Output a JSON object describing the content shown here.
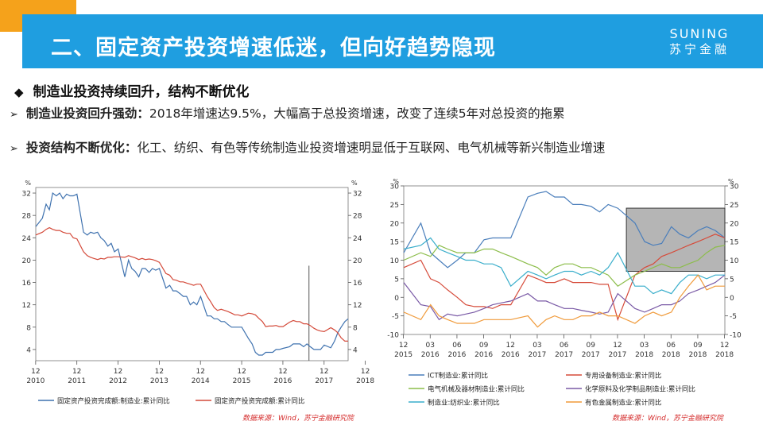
{
  "header": {
    "title": "二、固定资产投资增速低迷，但向好趋势隐现",
    "logo_en": "SUNING",
    "logo_cn": "苏宁金融"
  },
  "heading": "制造业投资持续回升，结构不断优化",
  "bullets": [
    {
      "bold": "制造业投资回升强劲：",
      "text": "2018年增速达9.5%，大幅高于总投资增速，改变了连续5年对总投资的拖累"
    },
    {
      "bold": "投资结构不断优化：",
      "text": "化工、纺织、有色等传统制造业投资增速明显低于互联网、电气机械等新兴制造业增速"
    }
  ],
  "colors": {
    "accent": "#f5a21b",
    "header": "#1f9ee0",
    "source": "#d42a2a"
  },
  "chart_data": [
    {
      "type": "line",
      "unit": "%",
      "ylim": [
        2,
        33
      ],
      "yticks": [
        4,
        8,
        12,
        16,
        20,
        24,
        28,
        32
      ],
      "xlim": [
        2010.92,
        2018.5
      ],
      "xticks": [
        {
          "x": 2010.917,
          "top": "12",
          "bottom": "2010"
        },
        {
          "x": 2011.917,
          "top": "12",
          "bottom": "2011"
        },
        {
          "x": 2012.917,
          "top": "12",
          "bottom": "2012"
        },
        {
          "x": 2013.917,
          "top": "12",
          "bottom": "2013"
        },
        {
          "x": 2014.917,
          "top": "12",
          "bottom": "2014"
        },
        {
          "x": 2015.917,
          "top": "12",
          "bottom": "2015"
        },
        {
          "x": 2016.917,
          "top": "12",
          "bottom": "2016"
        },
        {
          "x": 2017.917,
          "top": "12",
          "bottom": "2017"
        },
        {
          "x": 2018.917,
          "top": "12",
          "bottom": "2018"
        }
      ],
      "series": [
        {
          "name": "固定资产投资完成额:制造业:累计同比",
          "color": "#3f72af",
          "x": [
            2010.92,
            2011.08,
            2011.17,
            2011.25,
            2011.33,
            2011.42,
            2011.5,
            2011.58,
            2011.67,
            2011.75,
            2011.83,
            2011.92,
            2012.08,
            2012.17,
            2012.25,
            2012.33,
            2012.42,
            2012.5,
            2012.58,
            2012.67,
            2012.75,
            2012.83,
            2012.92,
            2013.08,
            2013.17,
            2013.25,
            2013.33,
            2013.42,
            2013.5,
            2013.58,
            2013.67,
            2013.75,
            2013.83,
            2013.92,
            2014.08,
            2014.17,
            2014.25,
            2014.33,
            2014.42,
            2014.5,
            2014.58,
            2014.67,
            2014.75,
            2014.83,
            2014.92,
            2015.08,
            2015.17,
            2015.25,
            2015.33,
            2015.42,
            2015.5,
            2015.58,
            2015.67,
            2015.75,
            2015.83,
            2015.92,
            2016.08,
            2016.17,
            2016.25,
            2016.33,
            2016.42,
            2016.5,
            2016.58,
            2016.67,
            2016.75,
            2016.83,
            2016.92,
            2017.08,
            2017.17,
            2017.25,
            2017.33,
            2017.42,
            2017.5,
            2017.58,
            2017.67,
            2017.75,
            2017.83,
            2017.92,
            2018.08,
            2018.17,
            2018.25,
            2018.33,
            2018.42,
            2018.5
          ],
          "y": [
            26,
            27.5,
            30,
            29,
            32,
            31.5,
            32,
            31,
            31.8,
            31.5,
            31.5,
            31.8,
            25,
            24.5,
            25,
            24.8,
            25,
            24,
            23.5,
            22.5,
            23,
            21.5,
            22,
            17,
            20,
            18.5,
            18,
            17,
            18.5,
            18.5,
            17.8,
            18.5,
            18.2,
            18.5,
            15,
            15.5,
            14.5,
            14.5,
            14,
            13.5,
            13.5,
            12,
            12.5,
            12,
            13.5,
            10,
            10,
            9.5,
            9.5,
            9,
            9,
            8.5,
            8,
            8,
            8,
            8,
            6,
            5,
            3.5,
            3,
            3,
            3.5,
            3.5,
            3.5,
            4,
            4,
            4.2,
            4.5,
            5,
            5,
            5,
            4.5,
            5,
            4.5,
            4,
            4,
            4,
            4.8,
            4.3,
            5.5,
            7,
            8,
            9,
            9.5
          ]
        },
        {
          "name": "固定资产投资完成额:累计同比",
          "color": "#d44a3a",
          "x": [
            2010.92,
            2011.08,
            2011.17,
            2011.25,
            2011.33,
            2011.42,
            2011.5,
            2011.58,
            2011.67,
            2011.75,
            2011.83,
            2011.92,
            2012.08,
            2012.17,
            2012.25,
            2012.33,
            2012.42,
            2012.5,
            2012.58,
            2012.67,
            2012.75,
            2012.83,
            2012.92,
            2013.08,
            2013.17,
            2013.25,
            2013.33,
            2013.42,
            2013.5,
            2013.58,
            2013.67,
            2013.75,
            2013.83,
            2013.92,
            2014.08,
            2014.17,
            2014.25,
            2014.33,
            2014.42,
            2014.5,
            2014.58,
            2014.67,
            2014.75,
            2014.83,
            2014.92,
            2015.08,
            2015.17,
            2015.25,
            2015.33,
            2015.42,
            2015.5,
            2015.58,
            2015.67,
            2015.75,
            2015.83,
            2015.92,
            2016.08,
            2016.17,
            2016.25,
            2016.33,
            2016.42,
            2016.5,
            2016.58,
            2016.67,
            2016.75,
            2016.83,
            2016.92,
            2017.08,
            2017.17,
            2017.25,
            2017.33,
            2017.42,
            2017.5,
            2017.58,
            2017.67,
            2017.75,
            2017.83,
            2017.92,
            2018.08,
            2018.17,
            2018.25,
            2018.33,
            2018.42,
            2018.5
          ],
          "y": [
            24.5,
            25,
            25.5,
            25.8,
            25.5,
            25.3,
            25.3,
            25,
            24.8,
            24.8,
            24,
            23.8,
            21.5,
            20.8,
            20.5,
            20.3,
            20.1,
            20.3,
            20.2,
            20.5,
            20.5,
            20.6,
            20.6,
            20.5,
            20.8,
            20.6,
            20.4,
            20.1,
            20.3,
            20.1,
            20.2,
            20.1,
            19.9,
            19.6,
            17.6,
            17.3,
            16.5,
            16.4,
            16.1,
            16.1,
            15.9,
            15.7,
            15.5,
            15.7,
            15.7,
            13.5,
            12.5,
            11.5,
            11,
            11.2,
            11,
            10.8,
            10.5,
            10.2,
            10.2,
            10,
            10.5,
            10.4,
            10.2,
            9.6,
            9,
            8.1,
            8.2,
            8.2,
            8.3,
            8.1,
            8.1,
            8.9,
            9.2,
            9,
            9,
            8.6,
            8.6,
            8.3,
            7.8,
            7.5,
            7.3,
            7.2,
            7.9,
            7.5,
            7,
            6.1,
            5.5,
            5.5
          ]
        }
      ],
      "source": "数据来源：Wind，苏宁金融研究院"
    },
    {
      "type": "line",
      "unit": "%",
      "ylim": [
        -10,
        30
      ],
      "yticks": [
        -10,
        -5,
        0,
        5,
        10,
        15,
        20,
        25,
        30
      ],
      "xlim": [
        2015.92,
        2018.92
      ],
      "xticks": [
        {
          "x": 2015.917,
          "top": "12",
          "bottom": "2015"
        },
        {
          "x": 2016.167,
          "top": "03",
          "bottom": "2016"
        },
        {
          "x": 2016.417,
          "top": "06",
          "bottom": "2016"
        },
        {
          "x": 2016.667,
          "top": "09",
          "bottom": "2016"
        },
        {
          "x": 2016.917,
          "top": "12",
          "bottom": "2016"
        },
        {
          "x": 2017.167,
          "top": "03",
          "bottom": "2017"
        },
        {
          "x": 2017.417,
          "top": "06",
          "bottom": "2017"
        },
        {
          "x": 2017.667,
          "top": "09",
          "bottom": "2017"
        },
        {
          "x": 2017.917,
          "top": "12",
          "bottom": "2017"
        },
        {
          "x": 2018.167,
          "top": "03",
          "bottom": "2018"
        },
        {
          "x": 2018.417,
          "top": "06",
          "bottom": "2018"
        },
        {
          "x": 2018.667,
          "top": "09",
          "bottom": "2018"
        },
        {
          "x": 2018.917,
          "top": "12",
          "bottom": "2018"
        }
      ],
      "series": [
        {
          "name": "ICT制造业:累计同比",
          "color": "#4a7ebb",
          "x": [
            2015.92,
            2016.08,
            2016.17,
            2016.25,
            2016.33,
            2016.42,
            2016.5,
            2016.58,
            2016.67,
            2016.75,
            2016.83,
            2016.92,
            2017.08,
            2017.17,
            2017.25,
            2017.33,
            2017.42,
            2017.5,
            2017.58,
            2017.67,
            2017.75,
            2017.83,
            2017.92,
            2018.08,
            2018.17,
            2018.25,
            2018.33,
            2018.42,
            2018.5,
            2018.58,
            2018.67,
            2018.75,
            2018.83,
            2018.92
          ],
          "y": [
            12,
            20,
            12,
            10,
            8,
            10,
            12,
            12,
            15.5,
            16,
            16,
            16,
            27,
            28,
            28.5,
            27,
            27,
            25,
            25,
            24.5,
            23,
            25,
            24,
            20,
            15,
            14,
            14.5,
            19,
            17,
            16,
            18,
            19,
            18,
            16
          ]
        },
        {
          "name": "专用设备制造业:累计同比",
          "color": "#d64b3a",
          "x": [
            2015.92,
            2016.08,
            2016.17,
            2016.25,
            2016.33,
            2016.42,
            2016.5,
            2016.58,
            2016.67,
            2016.75,
            2016.83,
            2016.92,
            2017.08,
            2017.17,
            2017.25,
            2017.33,
            2017.42,
            2017.5,
            2017.58,
            2017.67,
            2017.75,
            2017.83,
            2017.92,
            2018.08,
            2018.17,
            2018.25,
            2018.33,
            2018.42,
            2018.5,
            2018.58,
            2018.67,
            2018.75,
            2018.83,
            2018.92
          ],
          "y": [
            8,
            10,
            5,
            4,
            2,
            0,
            -2,
            -2.5,
            -2.5,
            -3,
            -2,
            -2,
            6,
            5,
            4,
            4,
            5,
            4,
            4,
            4,
            3.5,
            3.5,
            -6,
            6,
            8,
            9,
            11,
            12,
            13,
            14,
            15,
            16,
            17,
            16
          ]
        },
        {
          "name": "电气机械及器材制造业:累计同比",
          "color": "#8cbd4a",
          "x": [
            2015.92,
            2016.08,
            2016.17,
            2016.25,
            2016.33,
            2016.42,
            2016.5,
            2016.58,
            2016.67,
            2016.75,
            2016.83,
            2016.92,
            2017.08,
            2017.17,
            2017.25,
            2017.33,
            2017.42,
            2017.5,
            2017.58,
            2017.67,
            2017.75,
            2017.83,
            2017.92,
            2018.08,
            2018.17,
            2018.25,
            2018.33,
            2018.42,
            2018.5,
            2018.58,
            2018.67,
            2018.75,
            2018.83,
            2018.92
          ],
          "y": [
            10,
            12,
            11,
            14,
            13,
            12,
            12,
            12,
            13,
            13,
            12,
            11,
            9,
            8,
            6,
            8,
            9,
            9,
            8,
            8,
            7,
            6,
            3,
            6,
            7,
            8,
            9,
            8,
            8,
            9,
            10,
            12,
            13.5,
            14
          ]
        },
        {
          "name": "化学原料及化学制品制造业:累计同比",
          "color": "#7a5aa6",
          "x": [
            2015.92,
            2016.08,
            2016.17,
            2016.25,
            2016.33,
            2016.42,
            2016.5,
            2016.58,
            2016.67,
            2016.75,
            2016.83,
            2016.92,
            2017.08,
            2017.17,
            2017.25,
            2017.33,
            2017.42,
            2017.5,
            2017.58,
            2017.67,
            2017.75,
            2017.83,
            2017.92,
            2018.08,
            2018.17,
            2018.25,
            2018.33,
            2018.42,
            2018.5,
            2018.58,
            2018.67,
            2018.75,
            2018.83,
            2018.92
          ],
          "y": [
            4,
            -2,
            -2.5,
            -6,
            -4.5,
            -5,
            -4.5,
            -4,
            -3,
            -2,
            -1.5,
            -1,
            1,
            -1,
            -1,
            -2,
            -3,
            -3,
            -3.5,
            -4,
            -4.5,
            -4,
            1,
            -3,
            -4,
            -3,
            -2,
            -2,
            -1,
            1,
            2,
            3,
            4,
            6
          ]
        },
        {
          "name": "制造业:纺织业:累计同比",
          "color": "#3aaecb",
          "x": [
            2015.92,
            2016.08,
            2016.17,
            2016.25,
            2016.33,
            2016.42,
            2016.5,
            2016.58,
            2016.67,
            2016.75,
            2016.83,
            2016.92,
            2017.08,
            2017.17,
            2017.25,
            2017.33,
            2017.42,
            2017.5,
            2017.58,
            2017.67,
            2017.75,
            2017.83,
            2017.92,
            2018.08,
            2018.17,
            2018.25,
            2018.33,
            2018.42,
            2018.5,
            2018.58,
            2018.67,
            2018.75,
            2018.83,
            2018.92
          ],
          "y": [
            13,
            14,
            16,
            13,
            12,
            11,
            10,
            10,
            9,
            9,
            8,
            3,
            7,
            6,
            5,
            6,
            7,
            7,
            6,
            7,
            6,
            8,
            12,
            3,
            3,
            1,
            2,
            1,
            4,
            6,
            6,
            5,
            6,
            6
          ]
        },
        {
          "name": "有色金属制造业:累计同比",
          "color": "#f09a3a",
          "x": [
            2015.92,
            2016.08,
            2016.17,
            2016.25,
            2016.33,
            2016.42,
            2016.5,
            2016.58,
            2016.67,
            2016.75,
            2016.83,
            2016.92,
            2017.08,
            2017.17,
            2017.25,
            2017.33,
            2017.42,
            2017.5,
            2017.58,
            2017.67,
            2017.75,
            2017.83,
            2017.92,
            2018.08,
            2018.17,
            2018.25,
            2018.33,
            2018.42,
            2018.5,
            2018.58,
            2018.67,
            2018.75,
            2018.83,
            2018.92
          ],
          "y": [
            -4,
            -6,
            -2,
            -5,
            -6,
            -7,
            -7,
            -7,
            -6,
            -6,
            -6,
            -6,
            -5,
            -8,
            -6,
            -5,
            -6,
            -6,
            -5,
            -5,
            -4,
            -5,
            -5,
            -7,
            -5,
            -4,
            -5,
            -4,
            0,
            3,
            6,
            2,
            3,
            3
          ]
        }
      ],
      "source": "数据来源：Wind，苏宁金融研究院"
    }
  ]
}
